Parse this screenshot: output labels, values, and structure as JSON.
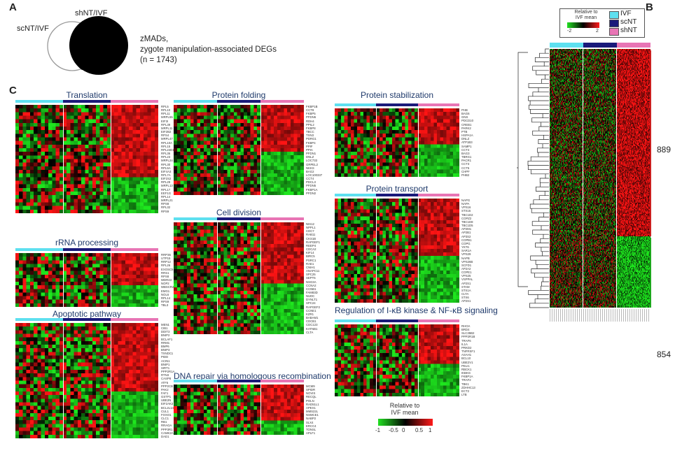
{
  "panels": {
    "a": "A",
    "b": "B",
    "c": "C"
  },
  "venn": {
    "left_label": "scNT/IVF",
    "right_label": "shNT/IVF",
    "description_line1": "zMADs,",
    "description_line2": "zygote manipulation-associated DEGs",
    "description_line3": "(n = 1743)"
  },
  "colors": {
    "ivf": "#5ee0f0",
    "scnt": "#1a1a7a",
    "shnt": "#e875b5",
    "up": "#ff1a1a",
    "down": "#22e022",
    "mid": "#000000",
    "title": "#1f3a6b"
  },
  "heatmaps": [
    {
      "title": "Translation",
      "genes": [
        "RPL5",
        "RPL10",
        "RPL11",
        "MRPL55",
        "EIF3I",
        "RPL39",
        "MRPL11",
        "EIF2B2",
        "RPS4",
        "MRPL47",
        "RPL10A",
        "RPL15",
        "RPL24D1",
        "RPL36",
        "RPL23",
        "MRPL24",
        "RPL30",
        "RPL5A",
        "EIF4A3",
        "RPL7A",
        "EIF2S2",
        "RPL29",
        "MRPL13",
        "RPL17",
        "EEF1G",
        "RPL14",
        "MRPL21",
        "RPS8",
        "RPL32",
        "RPS9"
      ]
    },
    {
      "title": "rRNA processing",
      "genes": [
        "RRP36",
        "UTP15",
        "RRP12",
        "RPL26",
        "EXOSC5",
        "RRS1",
        "RPS8",
        "WDR43",
        "NOP2",
        "WBSCR22",
        "EMG1",
        "NOL6",
        "RPL14",
        "RPS9",
        "TBL3"
      ]
    },
    {
      "title": "Apoptotic pathway",
      "genes": [
        "MEN1",
        "CIB1",
        "DDIT3",
        "BNIP2",
        "BCLAF1",
        "RRM1",
        "BMP6",
        "BNIP3",
        "TXNDC1",
        "PIDD",
        "ACIN1",
        "BNIP1",
        "SIRT1",
        "PPP2R1A",
        "RTN3",
        "CASP8",
        "ATF5",
        "PPP2CB",
        "PAK2",
        "FAF1",
        "GSTP1",
        "UBE2N",
        "EIF2AK3",
        "BCL2L14",
        "CUL1",
        "FOXO1",
        "CLC1",
        "RB1",
        "RRAGA",
        "PPP3R1",
        "CAMK2A",
        "DAD1"
      ]
    },
    {
      "title": "Protein folding",
      "genes": [
        "FKBP1B",
        "CCT8",
        "FKBP5",
        "PFDN6",
        "RDH4",
        "PPIL2",
        "FKBP8",
        "TBCC",
        "TXN3",
        "PDRG1",
        "FKBP4",
        "PPIF",
        "PPIA",
        "PFDN1",
        "DNLZ",
        "LOC733",
        "GRPEL2",
        "NKKS",
        "BAG2",
        "LOC100337",
        "CCT4",
        "PDCL3",
        "PFDN5",
        "FKBP1A",
        "PFDN2"
      ]
    },
    {
      "title": "Cell division",
      "genes": [
        "NIS12",
        "NPPL1",
        "CDC7",
        "RAB11",
        "CKS1B",
        "RAPGEF1",
        "REEP4",
        "CDCA2",
        "KIF14",
        "BIRC5",
        "PSRC1",
        "RAE1",
        "CNIH1",
        "ANAPC11",
        "SPC25",
        "SEPT6",
        "NSG3A",
        "CCNA2",
        "CCNB1",
        "FAM83D",
        "NUDC",
        "DYNLT1",
        "SPC24",
        "RAPGEF2",
        "CCNE1",
        "KZR1",
        "BABAM1",
        "CDCB1",
        "CDC123",
        "KATNB1",
        "CLTA"
      ]
    },
    {
      "title": "DNA repair via homologous recombination",
      "genes": [
        "MCM9",
        "SPIDR",
        "NOVIS",
        "RECQL",
        "POLN",
        "RAD51L1",
        "APEX1",
        "MMS22L",
        "NSMCE1",
        "NABP2",
        "SLX4",
        "ERCC4",
        "TONSL",
        "APLF1"
      ]
    },
    {
      "title": "Protein stabilization",
      "genes": [
        "PHB",
        "BAG6",
        "GNS",
        "PDCD10",
        "CREB1",
        "PARK2",
        "PTB",
        "HSPA1A",
        "DNLZ",
        "ATP1B3",
        "SAMP1",
        "CCT4",
        "BAG3",
        "TBRG1",
        "PACR1",
        "CCT3",
        "CCT5",
        "CHPF",
        "PHB2"
      ]
    },
    {
      "title": "Protein transport",
      "genes": [
        "NAPG",
        "NAPA",
        "VPS16",
        "STX16",
        "TBC1D2",
        "COPZ2",
        "TBC1D8",
        "TBC1D5",
        "AP2M1",
        "AP2B1",
        "AP3S2",
        "COPB1",
        "COPG",
        "YKT6",
        "SAR1A",
        "VPS29",
        "NAPB",
        "VPS26B",
        "SCFD1",
        "AP2A2",
        "COPE1",
        "VPS25",
        "VSPPAL",
        "AP2S1",
        "STAM",
        "STX1A",
        "CLTA",
        "STX6",
        "AP2S1"
      ]
    },
    {
      "title": "Regulation of I-κB kinase & NF-κB signaling",
      "genes": [
        "RHOA",
        "BRD4",
        "SLC35B2",
        "PPP2R1B",
        "TRAF6",
        "IL1A",
        "PRKD2",
        "TNFRSF1",
        "ASAH1",
        "BCL10",
        "UBE2V1",
        "PELI1",
        "RBCK1",
        "IKBKG",
        "FKBP1A",
        "TRAF2",
        "TBK1",
        "ZDHHC13",
        "ECT2",
        "LTB"
      ]
    }
  ],
  "panel_b": {
    "legend_title_line1": "Relative to",
    "legend_title_line2": "IVF mean",
    "scale_min": "-2",
    "scale_max": "2",
    "groups": [
      "IVF",
      "scNT",
      "shNT"
    ],
    "up_count": "889",
    "down_count": "854"
  },
  "scale_c": {
    "title_line1": "Relative to",
    "title_line2": "IVF mean",
    "ticks": [
      "-1",
      "-0.5",
      "0",
      "0.5",
      "1"
    ]
  }
}
